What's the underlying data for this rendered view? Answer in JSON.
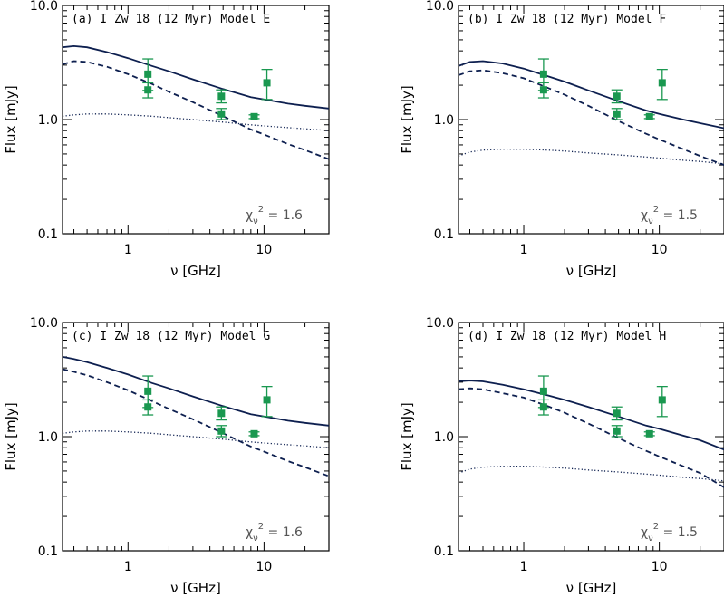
{
  "chart_data": [
    {
      "type": "line",
      "title": "(a) I Zw 18 (12 Myr) Model E",
      "xlabel": "ν [GHz]",
      "ylabel": "Flux [mJy]",
      "xscale": "log",
      "yscale": "log",
      "xlim": [
        0.33,
        30
      ],
      "ylim": [
        0.1,
        10
      ],
      "xticks": [
        {
          "v": 1,
          "label": "1"
        },
        {
          "v": 10,
          "label": "10"
        }
      ],
      "yticks": [
        {
          "v": 0.1,
          "label": "0.1"
        },
        {
          "v": 1,
          "label": "1.0"
        },
        {
          "v": 10,
          "label": "10.0"
        }
      ],
      "chi": {
        "value": "1.6"
      },
      "series": [
        {
          "style": "solid",
          "color": "#0d1f4f",
          "x": [
            0.33,
            0.4,
            0.5,
            0.7,
            1.0,
            1.5,
            2,
            3,
            5,
            8,
            10,
            15,
            20,
            30
          ],
          "y": [
            4.3,
            4.4,
            4.3,
            3.9,
            3.45,
            2.95,
            2.65,
            2.25,
            1.85,
            1.57,
            1.5,
            1.38,
            1.32,
            1.25
          ]
        },
        {
          "style": "dashed",
          "color": "#0d1f4f",
          "x": [
            0.33,
            0.4,
            0.5,
            0.7,
            1.0,
            1.5,
            2,
            3,
            5,
            8,
            10,
            15,
            20,
            30
          ],
          "y": [
            3.05,
            3.25,
            3.2,
            2.9,
            2.5,
            2.05,
            1.75,
            1.42,
            1.07,
            0.82,
            0.74,
            0.61,
            0.54,
            0.45
          ]
        },
        {
          "style": "dotted",
          "color": "#0d1f4f",
          "x": [
            0.33,
            0.4,
            0.5,
            0.7,
            1.0,
            1.5,
            2,
            3,
            5,
            8,
            10,
            15,
            20,
            30
          ],
          "y": [
            1.07,
            1.1,
            1.12,
            1.12,
            1.1,
            1.07,
            1.04,
            1.0,
            0.95,
            0.9,
            0.88,
            0.85,
            0.83,
            0.8
          ]
        }
      ],
      "points": [
        {
          "x": 1.4,
          "y": 2.5,
          "lo": 1.8,
          "hi": 3.4
        },
        {
          "x": 1.4,
          "y": 1.82,
          "lo": 1.55,
          "hi": 2.1
        },
        {
          "x": 4.86,
          "y": 1.6,
          "lo": 1.4,
          "hi": 1.82
        },
        {
          "x": 4.86,
          "y": 1.12,
          "lo": 1.0,
          "hi": 1.25
        },
        {
          "x": 8.46,
          "y": 1.06,
          "lo": 1.02,
          "hi": 1.1
        },
        {
          "x": 10.5,
          "y": 2.1,
          "lo": 1.5,
          "hi": 2.75
        }
      ],
      "marker_color": "#1a9850"
    },
    {
      "type": "line",
      "title": "(b) I Zw 18 (12 Myr) Model F",
      "xlabel": "ν [GHz]",
      "ylabel": "Flux [mJy]",
      "xscale": "log",
      "yscale": "log",
      "xlim": [
        0.33,
        30
      ],
      "ylim": [
        0.1,
        10
      ],
      "xticks": [
        {
          "v": 1,
          "label": "1"
        },
        {
          "v": 10,
          "label": "10"
        }
      ],
      "yticks": [
        {
          "v": 0.1,
          "label": "0.1"
        },
        {
          "v": 1,
          "label": "1.0"
        },
        {
          "v": 10,
          "label": "10.0"
        }
      ],
      "chi": {
        "value": "1.5"
      },
      "series": [
        {
          "style": "solid",
          "color": "#0d1f4f",
          "x": [
            0.33,
            0.4,
            0.5,
            0.7,
            1.0,
            1.5,
            2,
            3,
            5,
            8,
            10,
            15,
            20,
            30
          ],
          "y": [
            2.95,
            3.2,
            3.25,
            3.1,
            2.8,
            2.4,
            2.15,
            1.8,
            1.45,
            1.2,
            1.12,
            1.0,
            0.93,
            0.84
          ]
        },
        {
          "style": "dashed",
          "color": "#0d1f4f",
          "x": [
            0.33,
            0.4,
            0.5,
            0.7,
            1.0,
            1.5,
            2,
            3,
            5,
            8,
            10,
            15,
            20,
            30
          ],
          "y": [
            2.45,
            2.65,
            2.7,
            2.55,
            2.3,
            1.9,
            1.65,
            1.32,
            0.97,
            0.75,
            0.67,
            0.55,
            0.48,
            0.4
          ]
        },
        {
          "style": "dotted",
          "color": "#0d1f4f",
          "x": [
            0.33,
            0.4,
            0.5,
            0.7,
            1.0,
            1.5,
            2,
            3,
            5,
            8,
            10,
            15,
            20,
            30
          ],
          "y": [
            0.48,
            0.52,
            0.54,
            0.55,
            0.55,
            0.54,
            0.53,
            0.51,
            0.49,
            0.47,
            0.46,
            0.44,
            0.43,
            0.41
          ]
        }
      ],
      "points": [
        {
          "x": 1.4,
          "y": 2.5,
          "lo": 1.8,
          "hi": 3.4
        },
        {
          "x": 1.4,
          "y": 1.82,
          "lo": 1.55,
          "hi": 2.1
        },
        {
          "x": 4.86,
          "y": 1.6,
          "lo": 1.4,
          "hi": 1.82
        },
        {
          "x": 4.86,
          "y": 1.12,
          "lo": 1.0,
          "hi": 1.25
        },
        {
          "x": 8.46,
          "y": 1.06,
          "lo": 1.02,
          "hi": 1.1
        },
        {
          "x": 10.5,
          "y": 2.1,
          "lo": 1.5,
          "hi": 2.75
        }
      ],
      "marker_color": "#1a9850"
    },
    {
      "type": "line",
      "title": "(c) I Zw 18 (12 Myr) Model G",
      "xlabel": "ν [GHz]",
      "ylabel": "Flux [mJy]",
      "xscale": "log",
      "yscale": "log",
      "xlim": [
        0.33,
        30
      ],
      "ylim": [
        0.1,
        10
      ],
      "xticks": [
        {
          "v": 1,
          "label": "1"
        },
        {
          "v": 10,
          "label": "10"
        }
      ],
      "yticks": [
        {
          "v": 0.1,
          "label": "0.1"
        },
        {
          "v": 1,
          "label": "1.0"
        },
        {
          "v": 10,
          "label": "10.0"
        }
      ],
      "chi": {
        "value": "1.6"
      },
      "series": [
        {
          "style": "solid",
          "color": "#0d1f4f",
          "x": [
            0.33,
            0.4,
            0.5,
            0.7,
            1.0,
            1.5,
            2,
            3,
            5,
            8,
            10,
            15,
            20,
            30
          ],
          "y": [
            5.0,
            4.8,
            4.5,
            4.0,
            3.5,
            2.95,
            2.65,
            2.25,
            1.85,
            1.57,
            1.5,
            1.38,
            1.32,
            1.25
          ]
        },
        {
          "style": "dashed",
          "color": "#0d1f4f",
          "x": [
            0.33,
            0.4,
            0.5,
            0.7,
            1.0,
            1.5,
            2,
            3,
            5,
            8,
            10,
            15,
            20,
            30
          ],
          "y": [
            3.9,
            3.7,
            3.45,
            3.0,
            2.55,
            2.05,
            1.75,
            1.42,
            1.07,
            0.82,
            0.74,
            0.61,
            0.54,
            0.45
          ]
        },
        {
          "style": "dotted",
          "color": "#0d1f4f",
          "x": [
            0.33,
            0.4,
            0.5,
            0.7,
            1.0,
            1.5,
            2,
            3,
            5,
            8,
            10,
            15,
            20,
            30
          ],
          "y": [
            1.07,
            1.1,
            1.12,
            1.12,
            1.1,
            1.07,
            1.04,
            1.0,
            0.95,
            0.9,
            0.88,
            0.85,
            0.83,
            0.8
          ]
        }
      ],
      "points": [
        {
          "x": 1.4,
          "y": 2.5,
          "lo": 1.8,
          "hi": 3.4
        },
        {
          "x": 1.4,
          "y": 1.82,
          "lo": 1.55,
          "hi": 2.1
        },
        {
          "x": 4.86,
          "y": 1.6,
          "lo": 1.4,
          "hi": 1.82
        },
        {
          "x": 4.86,
          "y": 1.12,
          "lo": 1.0,
          "hi": 1.25
        },
        {
          "x": 8.46,
          "y": 1.06,
          "lo": 1.02,
          "hi": 1.1
        },
        {
          "x": 10.5,
          "y": 2.1,
          "lo": 1.5,
          "hi": 2.75
        }
      ],
      "marker_color": "#1a9850"
    },
    {
      "type": "line",
      "title": "(d) I Zw 18 (12 Myr) Model H",
      "xlabel": "ν [GHz]",
      "ylabel": "Flux [mJy]",
      "xscale": "log",
      "yscale": "log",
      "xlim": [
        0.33,
        30
      ],
      "ylim": [
        0.1,
        10
      ],
      "xticks": [
        {
          "v": 1,
          "label": "1"
        },
        {
          "v": 10,
          "label": "10"
        }
      ],
      "yticks": [
        {
          "v": 0.1,
          "label": "0.1"
        },
        {
          "v": 1,
          "label": "1.0"
        },
        {
          "v": 10,
          "label": "10.0"
        }
      ],
      "chi": {
        "value": "1.5"
      },
      "series": [
        {
          "style": "solid",
          "color": "#0d1f4f",
          "x": [
            0.33,
            0.4,
            0.5,
            0.7,
            1.0,
            1.5,
            2,
            3,
            5,
            8,
            10,
            15,
            20,
            30
          ],
          "y": [
            3.05,
            3.1,
            3.05,
            2.85,
            2.6,
            2.3,
            2.1,
            1.82,
            1.5,
            1.25,
            1.17,
            1.02,
            0.93,
            0.77
          ]
        },
        {
          "style": "dashed",
          "color": "#0d1f4f",
          "x": [
            0.33,
            0.4,
            0.5,
            0.7,
            1.0,
            1.5,
            2,
            3,
            5,
            8,
            10,
            15,
            20,
            30
          ],
          "y": [
            2.6,
            2.65,
            2.6,
            2.4,
            2.2,
            1.85,
            1.62,
            1.3,
            0.97,
            0.75,
            0.67,
            0.55,
            0.48,
            0.36
          ]
        },
        {
          "style": "dotted",
          "color": "#0d1f4f",
          "x": [
            0.33,
            0.4,
            0.5,
            0.7,
            1.0,
            1.5,
            2,
            3,
            5,
            8,
            10,
            15,
            20,
            30
          ],
          "y": [
            0.48,
            0.52,
            0.54,
            0.55,
            0.55,
            0.54,
            0.53,
            0.51,
            0.49,
            0.47,
            0.46,
            0.44,
            0.43,
            0.41
          ]
        }
      ],
      "points": [
        {
          "x": 1.4,
          "y": 2.5,
          "lo": 1.8,
          "hi": 3.4
        },
        {
          "x": 1.4,
          "y": 1.82,
          "lo": 1.55,
          "hi": 2.1
        },
        {
          "x": 4.86,
          "y": 1.6,
          "lo": 1.4,
          "hi": 1.82
        },
        {
          "x": 4.86,
          "y": 1.12,
          "lo": 1.0,
          "hi": 1.25
        },
        {
          "x": 8.46,
          "y": 1.06,
          "lo": 1.02,
          "hi": 1.1
        },
        {
          "x": 10.5,
          "y": 2.1,
          "lo": 1.5,
          "hi": 2.75
        }
      ],
      "marker_color": "#1a9850"
    }
  ]
}
